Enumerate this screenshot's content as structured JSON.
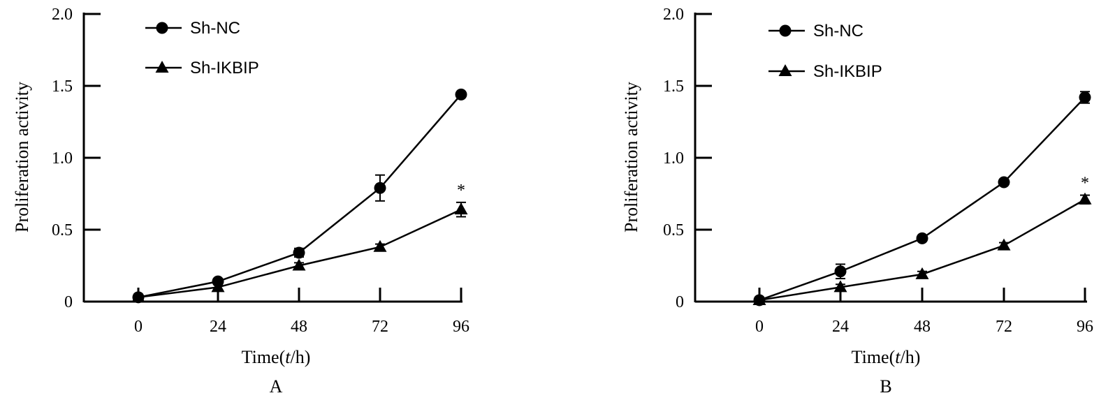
{
  "chart_data": [
    {
      "type": "line",
      "panel_label": "A",
      "x": [
        0,
        24,
        48,
        72,
        96
      ],
      "x_ticks": [
        "0",
        "24",
        "48",
        "72",
        "96"
      ],
      "y_ticks": [
        "0",
        "0.5",
        "1.0",
        "1.5",
        "2.0"
      ],
      "xlabel_main": "Time(",
      "xlabel_italic": "t",
      "xlabel_rest": "/h)",
      "ylabel": "Proliferation activity",
      "ylim": [
        0,
        2.0
      ],
      "legend_position": "top-left",
      "grid": false,
      "significance_mark": "*",
      "significance_at_x": 96,
      "series": [
        {
          "name": "Sh-NC",
          "marker": "circle",
          "values": [
            0.03,
            0.14,
            0.34,
            0.79,
            1.44
          ],
          "errors": [
            0.01,
            0.02,
            0.03,
            0.09,
            0.01
          ]
        },
        {
          "name": "Sh-IKBIP",
          "marker": "triangle",
          "values": [
            0.03,
            0.1,
            0.25,
            0.38,
            0.64
          ],
          "errors": [
            0.02,
            0.02,
            0.02,
            0.02,
            0.05
          ]
        }
      ]
    },
    {
      "type": "line",
      "panel_label": "B",
      "x": [
        0,
        24,
        48,
        72,
        96
      ],
      "x_ticks": [
        "0",
        "24",
        "48",
        "72",
        "96"
      ],
      "y_ticks": [
        "0",
        "0.5",
        "1.0",
        "1.5",
        "2.0"
      ],
      "xlabel_main": "Time(",
      "xlabel_italic": "t",
      "xlabel_rest": "/h)",
      "ylabel": "Proliferation activity",
      "ylim": [
        0,
        2.0
      ],
      "legend_position": "top-left",
      "grid": false,
      "significance_mark": "*",
      "significance_at_x": 96,
      "series": [
        {
          "name": "Sh-NC",
          "marker": "circle",
          "values": [
            0.01,
            0.21,
            0.44,
            0.83,
            1.42
          ],
          "errors": [
            0.01,
            0.05,
            0.02,
            0.02,
            0.04
          ]
        },
        {
          "name": "Sh-IKBIP",
          "marker": "triangle",
          "values": [
            0.01,
            0.1,
            0.19,
            0.39,
            0.71
          ],
          "errors": [
            0.01,
            0.02,
            0.02,
            0.02,
            0.03
          ]
        }
      ]
    }
  ]
}
